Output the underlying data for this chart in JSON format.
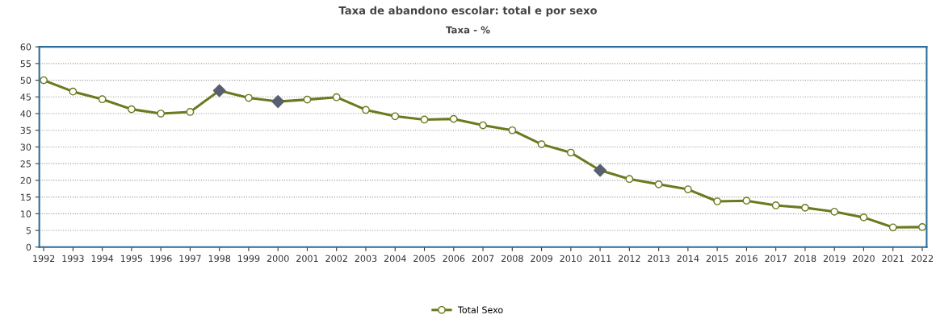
{
  "chart_data": {
    "type": "line",
    "title": "Taxa de abandono escolar: total e por sexo",
    "subtitle": "Taxa - %",
    "categories": [
      "1992",
      "1993",
      "1994",
      "1995",
      "1996",
      "1997",
      "1998",
      "1999",
      "2000",
      "2001",
      "2002",
      "2003",
      "2004",
      "2005",
      "2006",
      "2007",
      "2008",
      "2009",
      "2010",
      "2011",
      "2012",
      "2013",
      "2014",
      "2015",
      "2016",
      "2017",
      "2018",
      "2019",
      "2020",
      "2021",
      "2022"
    ],
    "series": [
      {
        "name": "Total Sexo",
        "color": "#6b7a1f",
        "marker": "circle",
        "values": [
          50.0,
          46.6,
          44.3,
          41.3,
          40.0,
          40.5,
          46.9,
          44.7,
          43.6,
          44.2,
          44.9,
          41.1,
          39.2,
          38.2,
          38.4,
          36.5,
          35.0,
          30.8,
          28.3,
          23.0,
          20.4,
          18.8,
          17.3,
          13.7,
          13.9,
          12.5,
          11.8,
          10.6,
          8.9,
          5.9,
          6.0
        ]
      },
      {
        "type": "scatter",
        "color": "#5a5f70",
        "marker": "diamond",
        "values": [
          null,
          null,
          null,
          null,
          null,
          null,
          46.9,
          null,
          43.6,
          null,
          null,
          null,
          null,
          null,
          null,
          null,
          null,
          null,
          null,
          23.0,
          null,
          null,
          null,
          null,
          null,
          null,
          null,
          null,
          null,
          null,
          null
        ]
      }
    ],
    "ylim": [
      0,
      60
    ],
    "yticks": [
      0,
      5,
      10,
      15,
      20,
      25,
      30,
      35,
      40,
      45,
      50,
      55,
      60
    ],
    "grid": "y",
    "legend": "bottom"
  }
}
